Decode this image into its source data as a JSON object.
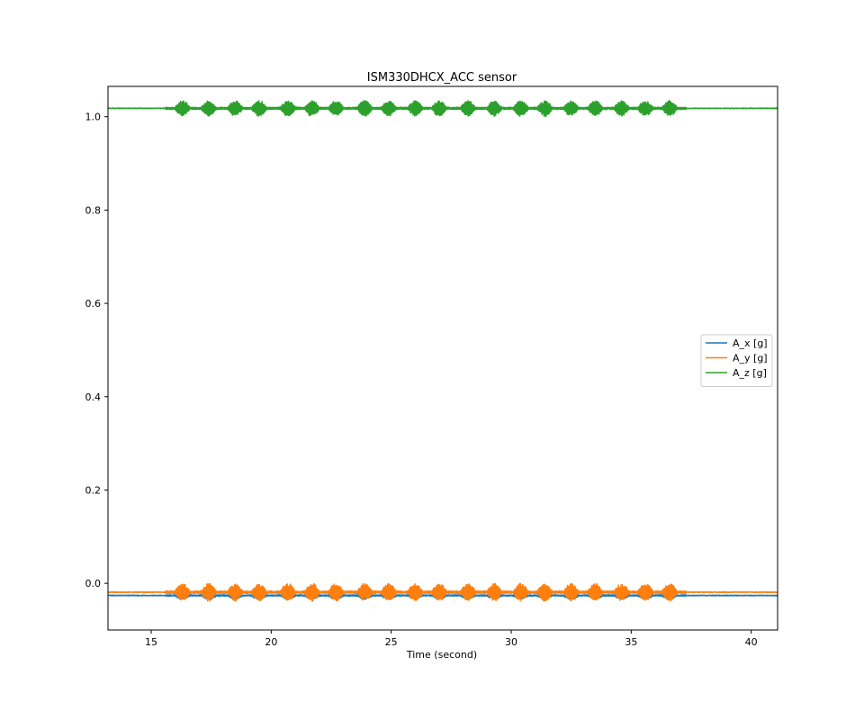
{
  "chart_data": {
    "type": "line",
    "title": "ISM330DHCX_ACC sensor",
    "xlabel": "Time (second)",
    "ylabel": "",
    "xlim": [
      13.2,
      41.1
    ],
    "ylim": [
      -0.1,
      1.065
    ],
    "xticks": [
      15,
      20,
      25,
      30,
      35,
      40
    ],
    "xtick_labels": [
      "15",
      "20",
      "25",
      "30",
      "35",
      "40"
    ],
    "yticks": [
      0.0,
      0.2,
      0.4,
      0.6,
      0.8,
      1.0
    ],
    "ytick_labels": [
      "0.0",
      "0.2",
      "0.4",
      "0.6",
      "0.8",
      "1.0"
    ],
    "grid": false,
    "legend_position": "center-right",
    "activity_window": [
      15.6,
      37.3
    ],
    "burst_centers": [
      16.3,
      17.4,
      18.5,
      19.5,
      20.7,
      21.7,
      22.7,
      23.9,
      24.9,
      26.0,
      27.0,
      28.2,
      29.3,
      30.4,
      31.4,
      32.5,
      33.5,
      34.6,
      35.6,
      36.6
    ],
    "series": [
      {
        "name": "A_x [g]",
        "color": "#1f77b4",
        "baseline": -0.026,
        "burst_amplitude": 0.008
      },
      {
        "name": "A_y [g]",
        "color": "#ff7f0e",
        "baseline": -0.019,
        "burst_amplitude": 0.018
      },
      {
        "name": "A_z [g]",
        "color": "#2ca02c",
        "baseline": 1.018,
        "burst_amplitude": 0.016
      }
    ]
  }
}
